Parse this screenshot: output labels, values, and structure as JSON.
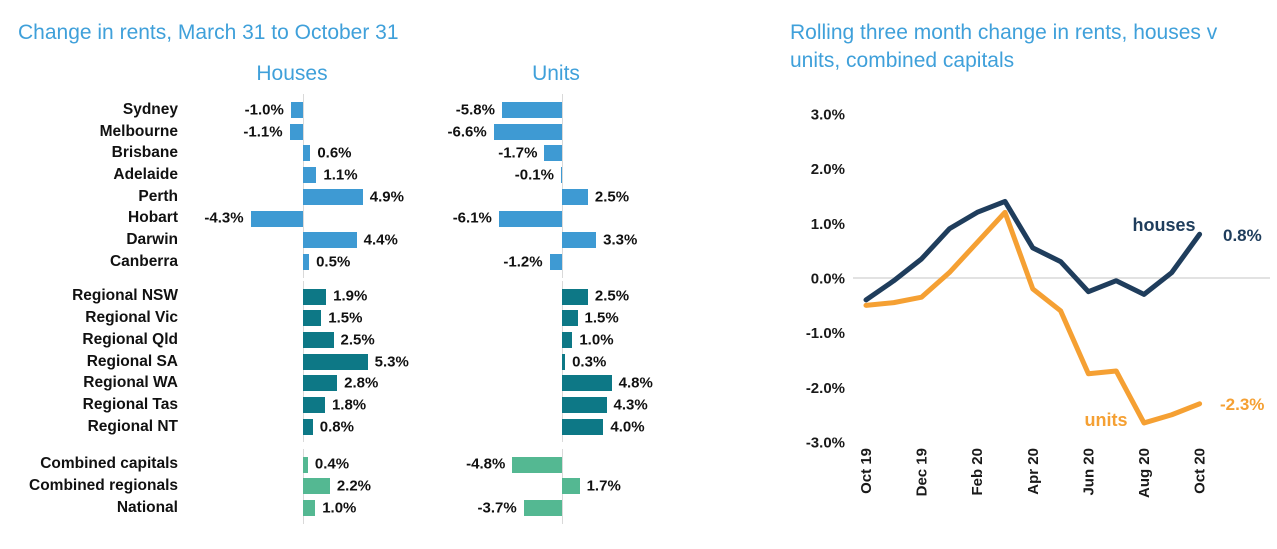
{
  "left_chart": {
    "title": "Change in rents, March 31 to October 31",
    "panel_headers": {
      "houses": "Houses",
      "units": "Units"
    }
  },
  "right_chart": {
    "title": "Rolling three month change in rents, houses v units, combined capitals"
  },
  "colors": {
    "title_blue": "#3fa0da",
    "capitals_bar": "#3e9ad3",
    "regional_bar": "#0d7886",
    "combined_bar": "#54b892",
    "houses_line": "#1f3d5c",
    "units_line": "#f5a033",
    "gridline": "#d9d9d9"
  },
  "chart_data": [
    {
      "type": "bar",
      "title": "Change in rents, March 31 to October 31",
      "orientation": "horizontal",
      "unit": "percent",
      "panels": [
        "Houses",
        "Units"
      ],
      "groups": [
        {
          "name": "capital-cities",
          "color": "#3e9ad3",
          "categories": [
            "Sydney",
            "Melbourne",
            "Brisbane",
            "Adelaide",
            "Perth",
            "Hobart",
            "Darwin",
            "Canberra"
          ],
          "houses": [
            -1.0,
            -1.1,
            0.6,
            1.1,
            4.9,
            -4.3,
            4.4,
            0.5
          ],
          "units": [
            -5.8,
            -6.6,
            -1.7,
            -0.1,
            2.5,
            -6.1,
            3.3,
            -1.2
          ]
        },
        {
          "name": "regional",
          "color": "#0d7886",
          "categories": [
            "Regional NSW",
            "Regional Vic",
            "Regional Qld",
            "Regional SA",
            "Regional WA",
            "Regional Tas",
            "Regional NT"
          ],
          "houses": [
            1.9,
            1.5,
            2.5,
            5.3,
            2.8,
            1.8,
            0.8
          ],
          "units": [
            2.5,
            1.5,
            1.0,
            0.3,
            4.8,
            4.3,
            4.0
          ]
        },
        {
          "name": "combined",
          "color": "#54b892",
          "categories": [
            "Combined capitals",
            "Combined regionals",
            "National"
          ],
          "houses": [
            0.4,
            2.2,
            1.0
          ],
          "units": [
            -4.8,
            1.7,
            -3.7
          ]
        }
      ]
    },
    {
      "type": "line",
      "title": "Rolling three month change in rents, houses v units, combined capitals",
      "x": [
        "Oct 19",
        "Nov 19",
        "Dec 19",
        "Jan 20",
        "Feb 20",
        "Mar 20",
        "Apr 20",
        "May 20",
        "Jun 20",
        "Jul 20",
        "Aug 20",
        "Sep 20",
        "Oct 20"
      ],
      "x_tick_labels": [
        "Oct 19",
        "Dec 19",
        "Feb 20",
        "Apr 20",
        "Jun 20",
        "Aug 20",
        "Oct 20"
      ],
      "ylim": [
        -3,
        3
      ],
      "ytick_labels": [
        "3.0%",
        "2.0%",
        "1.0%",
        "0.0%",
        "-1.0%",
        "-2.0%",
        "-3.0%"
      ],
      "gridline_value": 0,
      "legend_position": "inline-labels",
      "series": [
        {
          "name": "houses",
          "color": "#1f3d5c",
          "end_label": "0.8%",
          "values": [
            -0.4,
            -0.05,
            0.35,
            0.9,
            1.2,
            1.4,
            0.55,
            0.3,
            -0.25,
            -0.05,
            -0.3,
            0.1,
            0.8
          ]
        },
        {
          "name": "units",
          "color": "#f5a033",
          "end_label": "-2.3%",
          "values": [
            -0.5,
            -0.45,
            -0.35,
            0.1,
            0.65,
            1.2,
            -0.2,
            -0.6,
            -1.75,
            -1.7,
            -2.65,
            -2.5,
            -2.3
          ]
        }
      ]
    }
  ]
}
